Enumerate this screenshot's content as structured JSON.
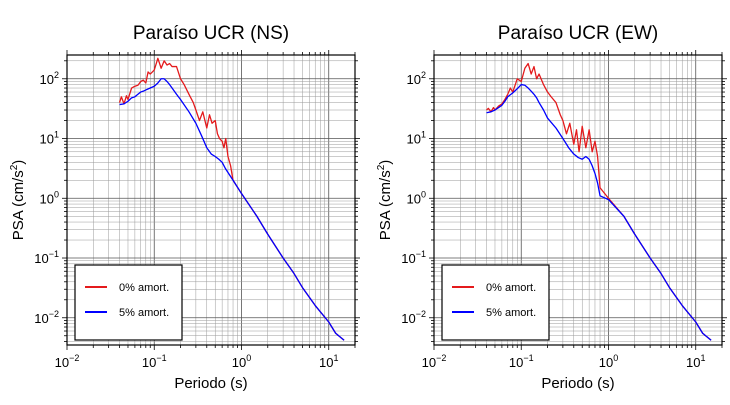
{
  "chart_data": [
    {
      "type": "line",
      "title": "Paraíso UCR (NS)",
      "xlabel": "Periodo (s)",
      "ylabel_base": "PSA (cm/s",
      "ylabel_sup": "2",
      "ylabel_end": ")",
      "x_scale": "log",
      "y_scale": "log",
      "xlim": [
        0.01,
        20
      ],
      "ylim": [
        0.0035,
        250
      ],
      "grid": true,
      "legend_position": "bottom-left",
      "x_ticks": [
        {
          "base": "10",
          "exp": "−2"
        },
        {
          "base": "10",
          "exp": "−1"
        },
        {
          "base": "10",
          "exp": "0"
        },
        {
          "base": "10",
          "exp": "1"
        }
      ],
      "y_ticks": [
        {
          "base": "10",
          "exp": "−2"
        },
        {
          "base": "10",
          "exp": "−1"
        },
        {
          "base": "10",
          "exp": "0"
        },
        {
          "base": "10",
          "exp": "1"
        },
        {
          "base": "10",
          "exp": "2"
        }
      ],
      "series": [
        {
          "name": "0% amort.",
          "color": "#e41a1c",
          "x": [
            0.04,
            0.042,
            0.045,
            0.048,
            0.05,
            0.055,
            0.06,
            0.065,
            0.07,
            0.075,
            0.08,
            0.085,
            0.09,
            0.1,
            0.11,
            0.12,
            0.13,
            0.14,
            0.15,
            0.16,
            0.18,
            0.2,
            0.22,
            0.25,
            0.28,
            0.3,
            0.33,
            0.36,
            0.4,
            0.43,
            0.46,
            0.5,
            0.53,
            0.56,
            0.6,
            0.63,
            0.66,
            0.7,
            0.75,
            0.8,
            1.0,
            1.5,
            2.0,
            3.0,
            4.0,
            5.0,
            7.0,
            10.0,
            12.0,
            15.0
          ],
          "y": [
            40,
            50,
            38,
            52,
            45,
            70,
            75,
            78,
            90,
            95,
            85,
            130,
            120,
            140,
            220,
            150,
            200,
            170,
            180,
            160,
            160,
            100,
            80,
            55,
            40,
            30,
            20,
            28,
            15,
            25,
            18,
            20,
            12,
            10,
            9,
            7,
            10,
            5,
            3.5,
            2.0,
            1.2,
            0.5,
            0.25,
            0.1,
            0.055,
            0.032,
            0.016,
            0.0085,
            0.0055,
            0.0042
          ]
        },
        {
          "name": "5% amort.",
          "color": "#0000ff",
          "x": [
            0.04,
            0.045,
            0.05,
            0.055,
            0.06,
            0.065,
            0.07,
            0.075,
            0.08,
            0.09,
            0.1,
            0.11,
            0.12,
            0.13,
            0.14,
            0.15,
            0.16,
            0.18,
            0.2,
            0.25,
            0.3,
            0.35,
            0.4,
            0.45,
            0.5,
            0.55,
            0.6,
            0.65,
            0.7,
            0.8,
            1.0,
            1.5,
            2.0,
            3.0,
            4.0,
            5.0,
            7.0,
            10.0,
            12.0,
            15.0
          ],
          "y": [
            37,
            38,
            42,
            48,
            50,
            55,
            60,
            62,
            65,
            70,
            75,
            85,
            100,
            100,
            90,
            80,
            70,
            55,
            45,
            28,
            18,
            11,
            7,
            5.5,
            5,
            4.5,
            4,
            3.2,
            2.7,
            2.0,
            1.2,
            0.5,
            0.25,
            0.1,
            0.055,
            0.032,
            0.016,
            0.0085,
            0.0055,
            0.0042
          ]
        }
      ]
    },
    {
      "type": "line",
      "title": "Paraíso UCR (EW)",
      "xlabel": "Periodo (s)",
      "ylabel_base": "PSA (cm/s",
      "ylabel_sup": "2",
      "ylabel_end": ")",
      "x_scale": "log",
      "y_scale": "log",
      "xlim": [
        0.01,
        20
      ],
      "ylim": [
        0.0035,
        250
      ],
      "grid": true,
      "legend_position": "bottom-left",
      "x_ticks": [
        {
          "base": "10",
          "exp": "−2"
        },
        {
          "base": "10",
          "exp": "−1"
        },
        {
          "base": "10",
          "exp": "0"
        },
        {
          "base": "10",
          "exp": "1"
        }
      ],
      "y_ticks": [
        {
          "base": "10",
          "exp": "−2"
        },
        {
          "base": "10",
          "exp": "−1"
        },
        {
          "base": "10",
          "exp": "0"
        },
        {
          "base": "10",
          "exp": "1"
        },
        {
          "base": "10",
          "exp": "2"
        }
      ],
      "series": [
        {
          "name": "0% amort.",
          "color": "#e41a1c",
          "x": [
            0.04,
            0.042,
            0.045,
            0.048,
            0.05,
            0.055,
            0.06,
            0.065,
            0.07,
            0.075,
            0.08,
            0.09,
            0.1,
            0.11,
            0.12,
            0.13,
            0.14,
            0.15,
            0.16,
            0.18,
            0.2,
            0.22,
            0.25,
            0.28,
            0.3,
            0.33,
            0.36,
            0.4,
            0.43,
            0.46,
            0.5,
            0.55,
            0.6,
            0.65,
            0.7,
            0.75,
            0.8,
            1.0,
            1.5,
            2.0,
            3.0,
            4.0,
            5.0,
            7.0,
            10.0,
            12.0,
            15.0
          ],
          "y": [
            30,
            32,
            28,
            33,
            30,
            35,
            38,
            45,
            55,
            70,
            60,
            100,
            90,
            150,
            180,
            120,
            160,
            100,
            120,
            80,
            60,
            50,
            40,
            25,
            20,
            12,
            18,
            8,
            14,
            6,
            16,
            7,
            14,
            6,
            9,
            5,
            1.5,
            1.0,
            0.5,
            0.25,
            0.1,
            0.055,
            0.032,
            0.016,
            0.0085,
            0.0055,
            0.0042
          ]
        },
        {
          "name": "5% amort.",
          "color": "#0000ff",
          "x": [
            0.04,
            0.045,
            0.05,
            0.055,
            0.06,
            0.065,
            0.07,
            0.08,
            0.09,
            0.1,
            0.11,
            0.12,
            0.13,
            0.14,
            0.15,
            0.16,
            0.18,
            0.2,
            0.25,
            0.3,
            0.35,
            0.4,
            0.45,
            0.5,
            0.55,
            0.6,
            0.65,
            0.7,
            0.75,
            0.8,
            1.0,
            1.5,
            2.0,
            3.0,
            4.0,
            5.0,
            7.0,
            10.0,
            12.0,
            15.0
          ],
          "y": [
            27,
            28,
            30,
            33,
            36,
            42,
            50,
            58,
            68,
            80,
            78,
            70,
            62,
            55,
            48,
            40,
            30,
            22,
            15,
            10,
            7,
            5.5,
            4.8,
            4.5,
            5.0,
            4.5,
            3.5,
            2.6,
            1.8,
            1.1,
            0.95,
            0.5,
            0.25,
            0.1,
            0.055,
            0.032,
            0.016,
            0.0085,
            0.0055,
            0.0042
          ]
        }
      ]
    }
  ]
}
